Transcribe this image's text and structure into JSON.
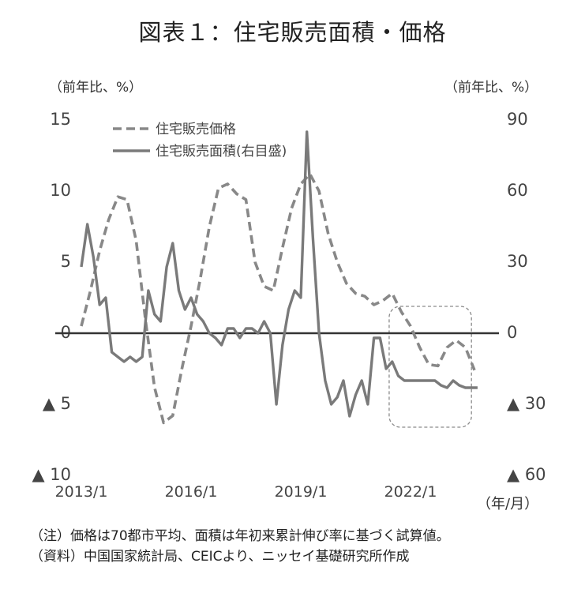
{
  "header": {
    "title": "図表１：住宅販売面積・価格",
    "left_unit": "（前年比、%）",
    "right_unit": "（前年比、%）",
    "x_unit": "（年/月）"
  },
  "notes": [
    "（注）価格は70都市平均、面積は年初来累計伸び率に基づく試算値。",
    "（資料）中国国家統計局、CEICより、ニッセイ基礎研究所作成"
  ],
  "colors": {
    "price": "#888888",
    "area": "#7a7a7a",
    "zero_line": "#333333",
    "highlight_box": "#8a8a8a"
  },
  "chart_data": {
    "type": "line",
    "title": "図表１：住宅販売面積・価格",
    "x_ticks": [
      "2013/1",
      "2016/1",
      "2019/1",
      "2022/1"
    ],
    "y_left": {
      "ylim": [
        -10,
        15
      ],
      "ticks": [
        "15",
        "10",
        "5",
        "0",
        "▲ 5",
        "▲ 10"
      ],
      "tick_values": [
        15,
        10,
        5,
        0,
        -5,
        -10
      ]
    },
    "y_right": {
      "ylim": [
        -60,
        90
      ],
      "ticks": [
        "90",
        "60",
        "30",
        "0",
        "▲ 30",
        "▲ 60"
      ],
      "tick_values": [
        90,
        60,
        30,
        0,
        -30,
        -60
      ]
    },
    "grid": false,
    "legend_position": "top-left",
    "highlight_box": {
      "x_from": "2021/6",
      "x_to": "2023/9",
      "note": "dashed rounded rectangle"
    },
    "series": [
      {
        "name": "住宅販売価格",
        "axis": "left",
        "style": "dashed",
        "x": [
          "2013/1",
          "2013/4",
          "2013/7",
          "2013/10",
          "2014/1",
          "2014/4",
          "2014/7",
          "2014/10",
          "2015/1",
          "2015/4",
          "2015/7",
          "2015/10",
          "2016/1",
          "2016/4",
          "2016/7",
          "2016/10",
          "2017/1",
          "2017/4",
          "2017/7",
          "2017/10",
          "2018/1",
          "2018/4",
          "2018/7",
          "2018/10",
          "2019/1",
          "2019/4",
          "2019/7",
          "2019/10",
          "2020/1",
          "2020/4",
          "2020/7",
          "2020/10",
          "2021/1",
          "2021/4",
          "2021/7",
          "2021/10",
          "2022/1",
          "2022/4",
          "2022/7",
          "2022/10",
          "2023/1",
          "2023/4",
          "2023/7",
          "2023/10"
        ],
        "values": [
          0.5,
          3.0,
          5.8,
          8.0,
          9.6,
          9.4,
          6.5,
          1.0,
          -3.8,
          -6.3,
          -5.8,
          -2.5,
          0.5,
          3.8,
          7.5,
          10.2,
          10.5,
          9.8,
          9.4,
          5.0,
          3.3,
          3.0,
          6.0,
          8.8,
          10.5,
          11.2,
          10.0,
          7.0,
          5.0,
          3.5,
          2.8,
          2.6,
          2.0,
          2.3,
          2.8,
          1.5,
          0.5,
          -1.0,
          -2.2,
          -2.3,
          -1.0,
          -0.5,
          -1.0,
          -2.6
        ]
      },
      {
        "name": "住宅販売面積(右目盛)",
        "axis": "right",
        "style": "solid",
        "x": [
          "2013/1",
          "2013/3",
          "2013/5",
          "2013/7",
          "2013/9",
          "2013/11",
          "2014/1",
          "2014/3",
          "2014/5",
          "2014/7",
          "2014/9",
          "2014/11",
          "2015/1",
          "2015/3",
          "2015/5",
          "2015/7",
          "2015/9",
          "2015/11",
          "2016/1",
          "2016/3",
          "2016/5",
          "2016/7",
          "2016/9",
          "2016/11",
          "2017/1",
          "2017/3",
          "2017/5",
          "2017/7",
          "2017/9",
          "2017/11",
          "2018/1",
          "2018/3",
          "2018/5",
          "2018/7",
          "2018/9",
          "2018/11",
          "2019/1",
          "2019/3",
          "2019/5",
          "2019/7",
          "2019/9",
          "2019/11",
          "2020/1",
          "2020/3",
          "2020/5",
          "2020/7",
          "2020/9",
          "2020/11",
          "2021/1",
          "2021/3",
          "2021/5",
          "2021/7",
          "2021/9",
          "2021/11",
          "2022/1",
          "2022/3",
          "2022/5",
          "2022/7",
          "2022/9",
          "2022/11",
          "2023/1",
          "2023/3",
          "2023/5",
          "2023/7",
          "2023/9",
          "2023/11"
        ],
        "values": [
          28,
          46,
          32,
          12,
          15,
          -8,
          -10,
          -12,
          -10,
          -12,
          -10,
          18,
          8,
          5,
          28,
          38,
          18,
          10,
          15,
          8,
          5,
          0,
          -2,
          -5,
          2,
          2,
          -2,
          2,
          2,
          0,
          5,
          0,
          -30,
          -5,
          10,
          18,
          15,
          85,
          40,
          0,
          -20,
          -30,
          -27,
          -20,
          -35,
          -26,
          -20,
          -30,
          -2,
          -2,
          -15,
          -12,
          -18,
          -20,
          -20,
          -20,
          -20,
          -20,
          -20,
          -22,
          -23,
          -20,
          -22,
          -23,
          -23,
          -23
        ]
      }
    ]
  }
}
